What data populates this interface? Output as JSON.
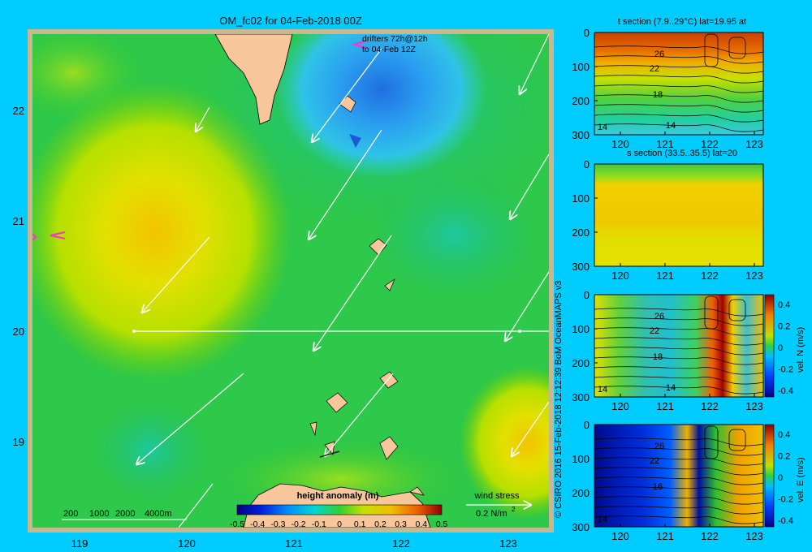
{
  "title": "OM_fc02 for 04-Feb-2018 00Z",
  "drifters_label": [
    "drifters 72h@12h",
    "to 04-Feb 12Z"
  ],
  "map": {
    "lat_ticks": [
      "22",
      "21",
      "20",
      "19"
    ],
    "lon_ticks": [
      "119",
      "120",
      "121",
      "122",
      "123"
    ],
    "depth_contour_labels": [
      "200",
      "1000",
      "2000",
      "4000m"
    ],
    "colorbar_title": "height anomaly (m)",
    "colorbar_ticks": [
      "-0.5",
      "-0.4",
      "-0.3",
      "-0.2",
      "-0.1",
      "0",
      "0.1",
      "0.2",
      "0.3",
      "0.4",
      "0.5"
    ],
    "wind_stress_title": "wind stress",
    "wind_stress_value": "0.2 N/m",
    "wind_stress_exp": "2",
    "section_lat": 20
  },
  "credit": "© CSIRO 2016   15-Feb-2018 12:12:39 BoM OceanMAPS v3",
  "panels": [
    {
      "id": "t",
      "title": "t section (7.9..29°C) lat=19.95 at",
      "contours": [
        "26",
        "22",
        "18",
        "14",
        "14"
      ],
      "cbar_label": ""
    },
    {
      "id": "s",
      "title": "s section (33.5..35.5) lat=20",
      "contours": [],
      "cbar_label": ""
    },
    {
      "id": "vn",
      "title": "",
      "contours": [
        "26",
        "22",
        "18",
        "14",
        "14"
      ],
      "cbar_label": "vel. N (m/s)"
    },
    {
      "id": "ve",
      "title": "",
      "contours": [
        "26",
        "22",
        "16",
        "14"
      ],
      "cbar_label": "vel. E (m/s)"
    }
  ],
  "panel_axes": {
    "depth_ticks": [
      "0",
      "100",
      "200",
      "300"
    ],
    "lon_ticks": [
      "120",
      "121",
      "122",
      "123"
    ],
    "vel_ticks": [
      "0.4",
      "0.2",
      "0",
      "-0.2",
      "-0.4"
    ]
  },
  "colors": {
    "background": "#00ccff",
    "land": "#f7c79b",
    "drifter": "#ff33cc"
  }
}
